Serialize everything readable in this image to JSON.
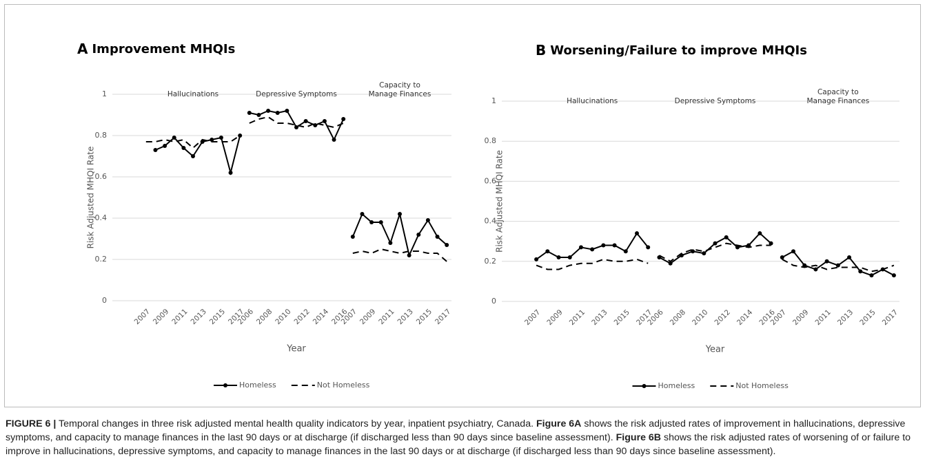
{
  "chart_data": [
    {
      "type": "line",
      "label": "A",
      "title": "Improvement MHQIs",
      "y_label": "Risk Adjusted MHQI Rate",
      "x_label": "Year",
      "ylim": [
        0,
        1
      ],
      "yticks": [
        0,
        0.2,
        0.4,
        0.6,
        0.8,
        1
      ],
      "grid": true,
      "legend": "bottom",
      "groups": [
        {
          "label": [
            "Hallucinations"
          ],
          "categories": [
            "2007",
            null,
            "2009",
            null,
            "2011",
            null,
            "2013",
            null,
            "2015",
            null,
            "2017"
          ]
        },
        {
          "label": [
            "Depressive Symptoms"
          ],
          "categories": [
            "2006",
            null,
            "2008",
            null,
            "2010",
            null,
            "2012",
            null,
            "2014",
            null,
            "2016"
          ]
        },
        {
          "label": [
            "Capacity to",
            "Manage Finances"
          ],
          "categories": [
            "2007",
            null,
            "2009",
            null,
            "2011",
            null,
            "2013",
            null,
            "2015",
            null,
            "2017"
          ]
        }
      ],
      "series": [
        {
          "name": "Homeless",
          "color": "#000000",
          "dashed": false,
          "markers": true,
          "values": [
            [
              null,
              0.73,
              0.75,
              0.79,
              0.74,
              0.7,
              0.77,
              0.78,
              0.79,
              0.62,
              0.8
            ],
            [
              0.91,
              0.9,
              0.92,
              0.91,
              0.92,
              0.84,
              0.87,
              0.85,
              0.87,
              0.78,
              0.88
            ],
            [
              0.31,
              0.42,
              0.38,
              0.38,
              0.28,
              0.42,
              0.22,
              0.32,
              0.39,
              0.31,
              0.27
            ]
          ]
        },
        {
          "name": "Not Homeless",
          "color": "#000000",
          "dashed": true,
          "markers": false,
          "values": [
            [
              0.77,
              0.77,
              0.78,
              0.77,
              0.78,
              0.74,
              0.78,
              0.77,
              0.77,
              0.77,
              0.8
            ],
            [
              0.86,
              0.88,
              0.89,
              0.86,
              0.86,
              0.85,
              0.84,
              0.86,
              0.85,
              0.84,
              0.86
            ],
            [
              0.23,
              0.24,
              0.23,
              0.25,
              0.24,
              0.23,
              0.24,
              0.24,
              0.23,
              0.23,
              0.19
            ]
          ]
        }
      ]
    },
    {
      "type": "line",
      "label": "B",
      "title": "Worsening/Failure to improve MHQIs",
      "y_label": "Risk Adjusted MHQI Rate",
      "x_label": "Year",
      "ylim": [
        0,
        1
      ],
      "yticks": [
        0,
        0.2,
        0.4,
        0.6,
        0.8,
        1
      ],
      "grid": true,
      "legend": "bottom",
      "groups": [
        {
          "label": [
            "Hallucinations"
          ],
          "categories": [
            "2007",
            null,
            "2009",
            null,
            "2011",
            null,
            "2013",
            null,
            "2015",
            null,
            "2017"
          ]
        },
        {
          "label": [
            "Depressive Symptoms"
          ],
          "categories": [
            "2006",
            null,
            "2008",
            null,
            "2010",
            null,
            "2012",
            null,
            "2014",
            null,
            "2016"
          ]
        },
        {
          "label": [
            "Capacity to",
            "Manage Finances"
          ],
          "categories": [
            "2007",
            null,
            "2009",
            null,
            "2011",
            null,
            "2013",
            null,
            "2015",
            null,
            "2017"
          ]
        }
      ],
      "series": [
        {
          "name": "Homeless",
          "color": "#000000",
          "dashed": false,
          "markers": true,
          "values": [
            [
              0.21,
              0.25,
              0.22,
              0.22,
              0.27,
              0.26,
              0.28,
              0.28,
              0.25,
              0.34,
              0.27
            ],
            [
              0.22,
              0.19,
              0.23,
              0.25,
              0.24,
              0.29,
              0.32,
              0.27,
              0.28,
              0.34,
              0.29
            ],
            [
              0.22,
              0.25,
              0.18,
              0.16,
              0.2,
              0.18,
              0.22,
              0.15,
              0.13,
              0.16,
              0.13
            ]
          ]
        },
        {
          "name": "Not Homeless",
          "color": "#000000",
          "dashed": true,
          "markers": false,
          "values": [
            [
              0.18,
              0.16,
              0.16,
              0.18,
              0.19,
              0.19,
              0.21,
              0.2,
              0.2,
              0.21,
              0.19
            ],
            [
              0.23,
              0.2,
              0.24,
              0.26,
              0.25,
              0.27,
              0.29,
              0.28,
              0.27,
              0.28,
              0.28
            ],
            [
              0.21,
              0.18,
              0.17,
              0.18,
              0.16,
              0.17,
              0.17,
              0.17,
              0.15,
              0.16,
              0.18
            ]
          ]
        }
      ]
    }
  ],
  "caption": [
    {
      "text": "FIGURE 6 |",
      "bold": true
    },
    {
      "text": " Temporal changes in three risk adjusted mental health quality indicators by year, inpatient psychiatry, Canada. ",
      "bold": false
    },
    {
      "text": "Figure 6A",
      "bold": true
    },
    {
      "text": " shows the risk adjusted rates of improvement in hallucinations, depressive symptoms, and capacity to manage finances in the last 90 days or at discharge (if discharged less than 90 days since baseline assessment). ",
      "bold": false
    },
    {
      "text": "Figure 6B",
      "bold": true
    },
    {
      "text": " shows the risk adjusted rates of worsening of or failure to improve in hallucinations, depressive symptoms, and capacity to manage finances in the last 90 days or at discharge (if discharged less than 90 days since baseline assessment).",
      "bold": false
    }
  ]
}
